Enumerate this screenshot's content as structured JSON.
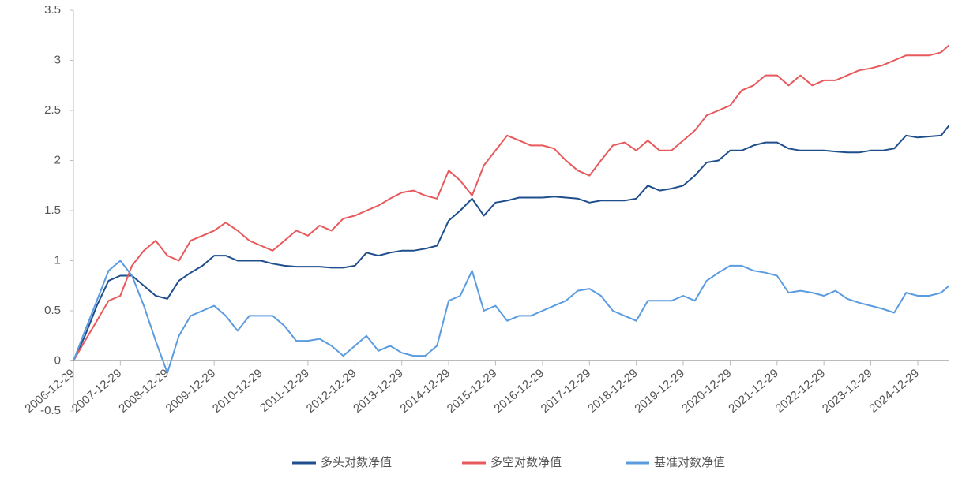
{
  "chart_data": {
    "type": "line",
    "x": [
      "2006-12-29",
      "2007-03-29",
      "2007-06-29",
      "2007-09-29",
      "2007-12-29",
      "2008-03-29",
      "2008-06-29",
      "2008-09-29",
      "2008-12-29",
      "2009-03-29",
      "2009-06-29",
      "2009-09-29",
      "2009-12-29",
      "2010-03-29",
      "2010-06-29",
      "2010-09-29",
      "2010-12-29",
      "2011-03-29",
      "2011-06-29",
      "2011-09-29",
      "2011-12-29",
      "2012-03-29",
      "2012-06-29",
      "2012-09-29",
      "2012-12-29",
      "2013-03-29",
      "2013-06-29",
      "2013-09-29",
      "2013-12-29",
      "2014-03-29",
      "2014-06-29",
      "2014-09-29",
      "2014-12-29",
      "2015-03-29",
      "2015-06-29",
      "2015-09-29",
      "2015-12-29",
      "2016-03-29",
      "2016-06-29",
      "2016-09-29",
      "2016-12-29",
      "2017-03-29",
      "2017-06-29",
      "2017-09-29",
      "2017-12-29",
      "2018-03-29",
      "2018-06-29",
      "2018-09-29",
      "2018-12-29",
      "2019-03-29",
      "2019-06-29",
      "2019-09-29",
      "2019-12-29",
      "2020-03-29",
      "2020-06-29",
      "2020-09-29",
      "2020-12-29",
      "2021-03-29",
      "2021-06-29",
      "2021-09-29",
      "2021-12-29",
      "2022-03-29",
      "2022-06-29",
      "2022-09-29",
      "2022-12-29",
      "2023-03-29",
      "2023-06-29",
      "2023-09-29",
      "2023-12-29",
      "2024-03-29",
      "2024-06-29",
      "2024-09-29",
      "2024-12-29",
      "2025-03-29",
      "2025-06-29",
      "2025-08-29"
    ],
    "xticks": [
      "2006-12-29",
      "2007-12-29",
      "2008-12-29",
      "2009-12-29",
      "2010-12-29",
      "2011-12-29",
      "2012-12-29",
      "2013-12-29",
      "2014-12-29",
      "2015-12-29",
      "2016-12-29",
      "2017-12-29",
      "2018-12-29",
      "2019-12-29",
      "2020-12-29",
      "2021-12-29",
      "2022-12-29",
      "2023-12-29",
      "2024-12-29"
    ],
    "ylim": [
      -0.5,
      3.5
    ],
    "yticks": [
      -0.5,
      0,
      0.5,
      1,
      1.5,
      2,
      2.5,
      3,
      3.5
    ],
    "series": [
      {
        "name": "多头对数净值",
        "color": "#1f4e8c",
        "values": [
          0,
          0.25,
          0.55,
          0.8,
          0.85,
          0.85,
          0.75,
          0.65,
          0.62,
          0.8,
          0.88,
          0.95,
          1.05,
          1.05,
          1.0,
          1.0,
          1.0,
          0.97,
          0.95,
          0.94,
          0.94,
          0.94,
          0.93,
          0.93,
          0.95,
          1.08,
          1.05,
          1.08,
          1.1,
          1.1,
          1.12,
          1.15,
          1.4,
          1.5,
          1.62,
          1.45,
          1.58,
          1.6,
          1.63,
          1.63,
          1.63,
          1.64,
          1.63,
          1.62,
          1.58,
          1.6,
          1.6,
          1.6,
          1.62,
          1.75,
          1.7,
          1.72,
          1.75,
          1.85,
          1.98,
          2.0,
          2.1,
          2.1,
          2.15,
          2.18,
          2.18,
          2.12,
          2.1,
          2.1,
          2.1,
          2.09,
          2.08,
          2.08,
          2.1,
          2.1,
          2.12,
          2.25,
          2.23,
          2.24,
          2.25,
          2.35
        ]
      },
      {
        "name": "多空对数净值",
        "color": "#e8595c",
        "values": [
          0,
          0.2,
          0.4,
          0.6,
          0.65,
          0.95,
          1.1,
          1.2,
          1.05,
          1.0,
          1.2,
          1.25,
          1.3,
          1.38,
          1.3,
          1.2,
          1.15,
          1.1,
          1.2,
          1.3,
          1.25,
          1.35,
          1.3,
          1.42,
          1.45,
          1.5,
          1.55,
          1.62,
          1.68,
          1.7,
          1.65,
          1.62,
          1.9,
          1.8,
          1.65,
          1.95,
          2.1,
          2.25,
          2.2,
          2.15,
          2.15,
          2.12,
          2.0,
          1.9,
          1.85,
          2.0,
          2.15,
          2.18,
          2.1,
          2.2,
          2.1,
          2.1,
          2.2,
          2.3,
          2.45,
          2.5,
          2.55,
          2.7,
          2.75,
          2.85,
          2.85,
          2.75,
          2.85,
          2.75,
          2.8,
          2.8,
          2.85,
          2.9,
          2.92,
          2.95,
          3.0,
          3.05,
          3.05,
          3.05,
          3.08,
          3.15
        ]
      },
      {
        "name": "基准对数净值",
        "color": "#5b9be0",
        "values": [
          0,
          0.3,
          0.6,
          0.9,
          1.0,
          0.85,
          0.55,
          0.2,
          -0.12,
          0.25,
          0.45,
          0.5,
          0.55,
          0.45,
          0.3,
          0.45,
          0.45,
          0.45,
          0.35,
          0.2,
          0.2,
          0.22,
          0.15,
          0.05,
          0.15,
          0.25,
          0.1,
          0.15,
          0.08,
          0.05,
          0.05,
          0.15,
          0.6,
          0.65,
          0.9,
          0.5,
          0.55,
          0.4,
          0.45,
          0.45,
          0.5,
          0.55,
          0.6,
          0.7,
          0.72,
          0.65,
          0.5,
          0.45,
          0.4,
          0.6,
          0.6,
          0.6,
          0.65,
          0.6,
          0.8,
          0.88,
          0.95,
          0.95,
          0.9,
          0.88,
          0.85,
          0.68,
          0.7,
          0.68,
          0.65,
          0.7,
          0.62,
          0.58,
          0.55,
          0.52,
          0.48,
          0.68,
          0.65,
          0.65,
          0.68,
          0.75
        ]
      }
    ]
  }
}
